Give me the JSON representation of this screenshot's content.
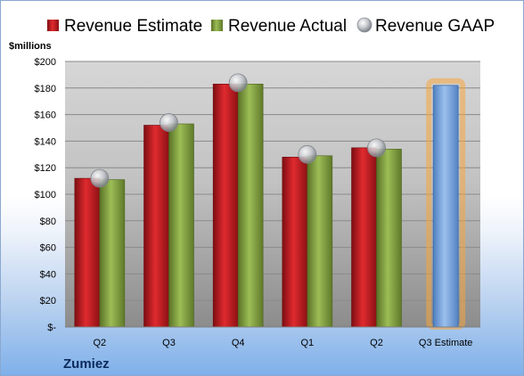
{
  "chart_data": {
    "type": "bar",
    "company": "Zumiez",
    "unit_label": "$millions",
    "categories": [
      "Q2",
      "Q3",
      "Q4",
      "Q1",
      "Q2",
      "Q3 Estimate"
    ],
    "series": [
      {
        "name": "Revenue Estimate",
        "type": "bar",
        "color": "#c8181e",
        "values": [
          112,
          152,
          183,
          128,
          135,
          null
        ]
      },
      {
        "name": "Revenue Actual",
        "type": "bar",
        "color": "#7e9a3c",
        "values": [
          111,
          153,
          183,
          129,
          134,
          null
        ]
      },
      {
        "name": "Revenue GAAP",
        "type": "scatter",
        "color": "#b9bcc2",
        "values": [
          112,
          154,
          184,
          130,
          135,
          null
        ]
      },
      {
        "name": "Revenue Estimate",
        "type": "bar",
        "role": "next-quarter-estimate",
        "color": "#6f9bd6",
        "glow": "#f6a63c",
        "values": [
          null,
          null,
          null,
          null,
          null,
          182
        ]
      }
    ],
    "legend": [
      "Revenue Estimate",
      "Revenue Actual",
      "Revenue GAAP"
    ],
    "legend_position": "top",
    "y_ticks": [
      "$-",
      "$20",
      "$40",
      "$60",
      "$80",
      "$100",
      "$120",
      "$140",
      "$160",
      "$180",
      "$200"
    ],
    "ylim": [
      0,
      200
    ],
    "grid": true
  }
}
